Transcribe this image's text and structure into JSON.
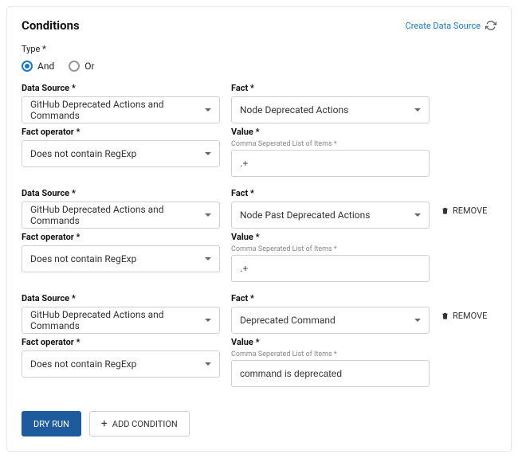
{
  "header": {
    "title": "Conditions",
    "create_link": "Create Data Source"
  },
  "type": {
    "label": "Type *",
    "options": {
      "and": "And",
      "or": "Or"
    },
    "selected": "and"
  },
  "labels": {
    "data_source": "Data Source *",
    "fact": "Fact *",
    "fact_operator": "Fact operator *",
    "value": "Value *",
    "value_hint": "Comma Seperated List of Items *",
    "remove": "REMOVE"
  },
  "conditions": [
    {
      "data_source": "GitHub Deprecated Actions and Commands",
      "fact": "Node Deprecated Actions",
      "operator": "Does not contain RegExp",
      "value": ".+",
      "removable": false
    },
    {
      "data_source": "GitHub Deprecated Actions and Commands",
      "fact": "Node Past Deprecated Actions",
      "operator": "Does not contain RegExp",
      "value": ".+",
      "removable": true
    },
    {
      "data_source": "GitHub Deprecated Actions and Commands",
      "fact": "Deprecated Command",
      "operator": "Does not contain RegExp",
      "value": "command is deprecated",
      "removable": true
    }
  ],
  "buttons": {
    "dry_run": "DRY RUN",
    "add_condition": "ADD CONDITION"
  },
  "colors": {
    "link": "#1976d2",
    "primary": "#1e5a9e",
    "border": "#d0d0d0",
    "text": "#333333",
    "hint": "#888888"
  }
}
